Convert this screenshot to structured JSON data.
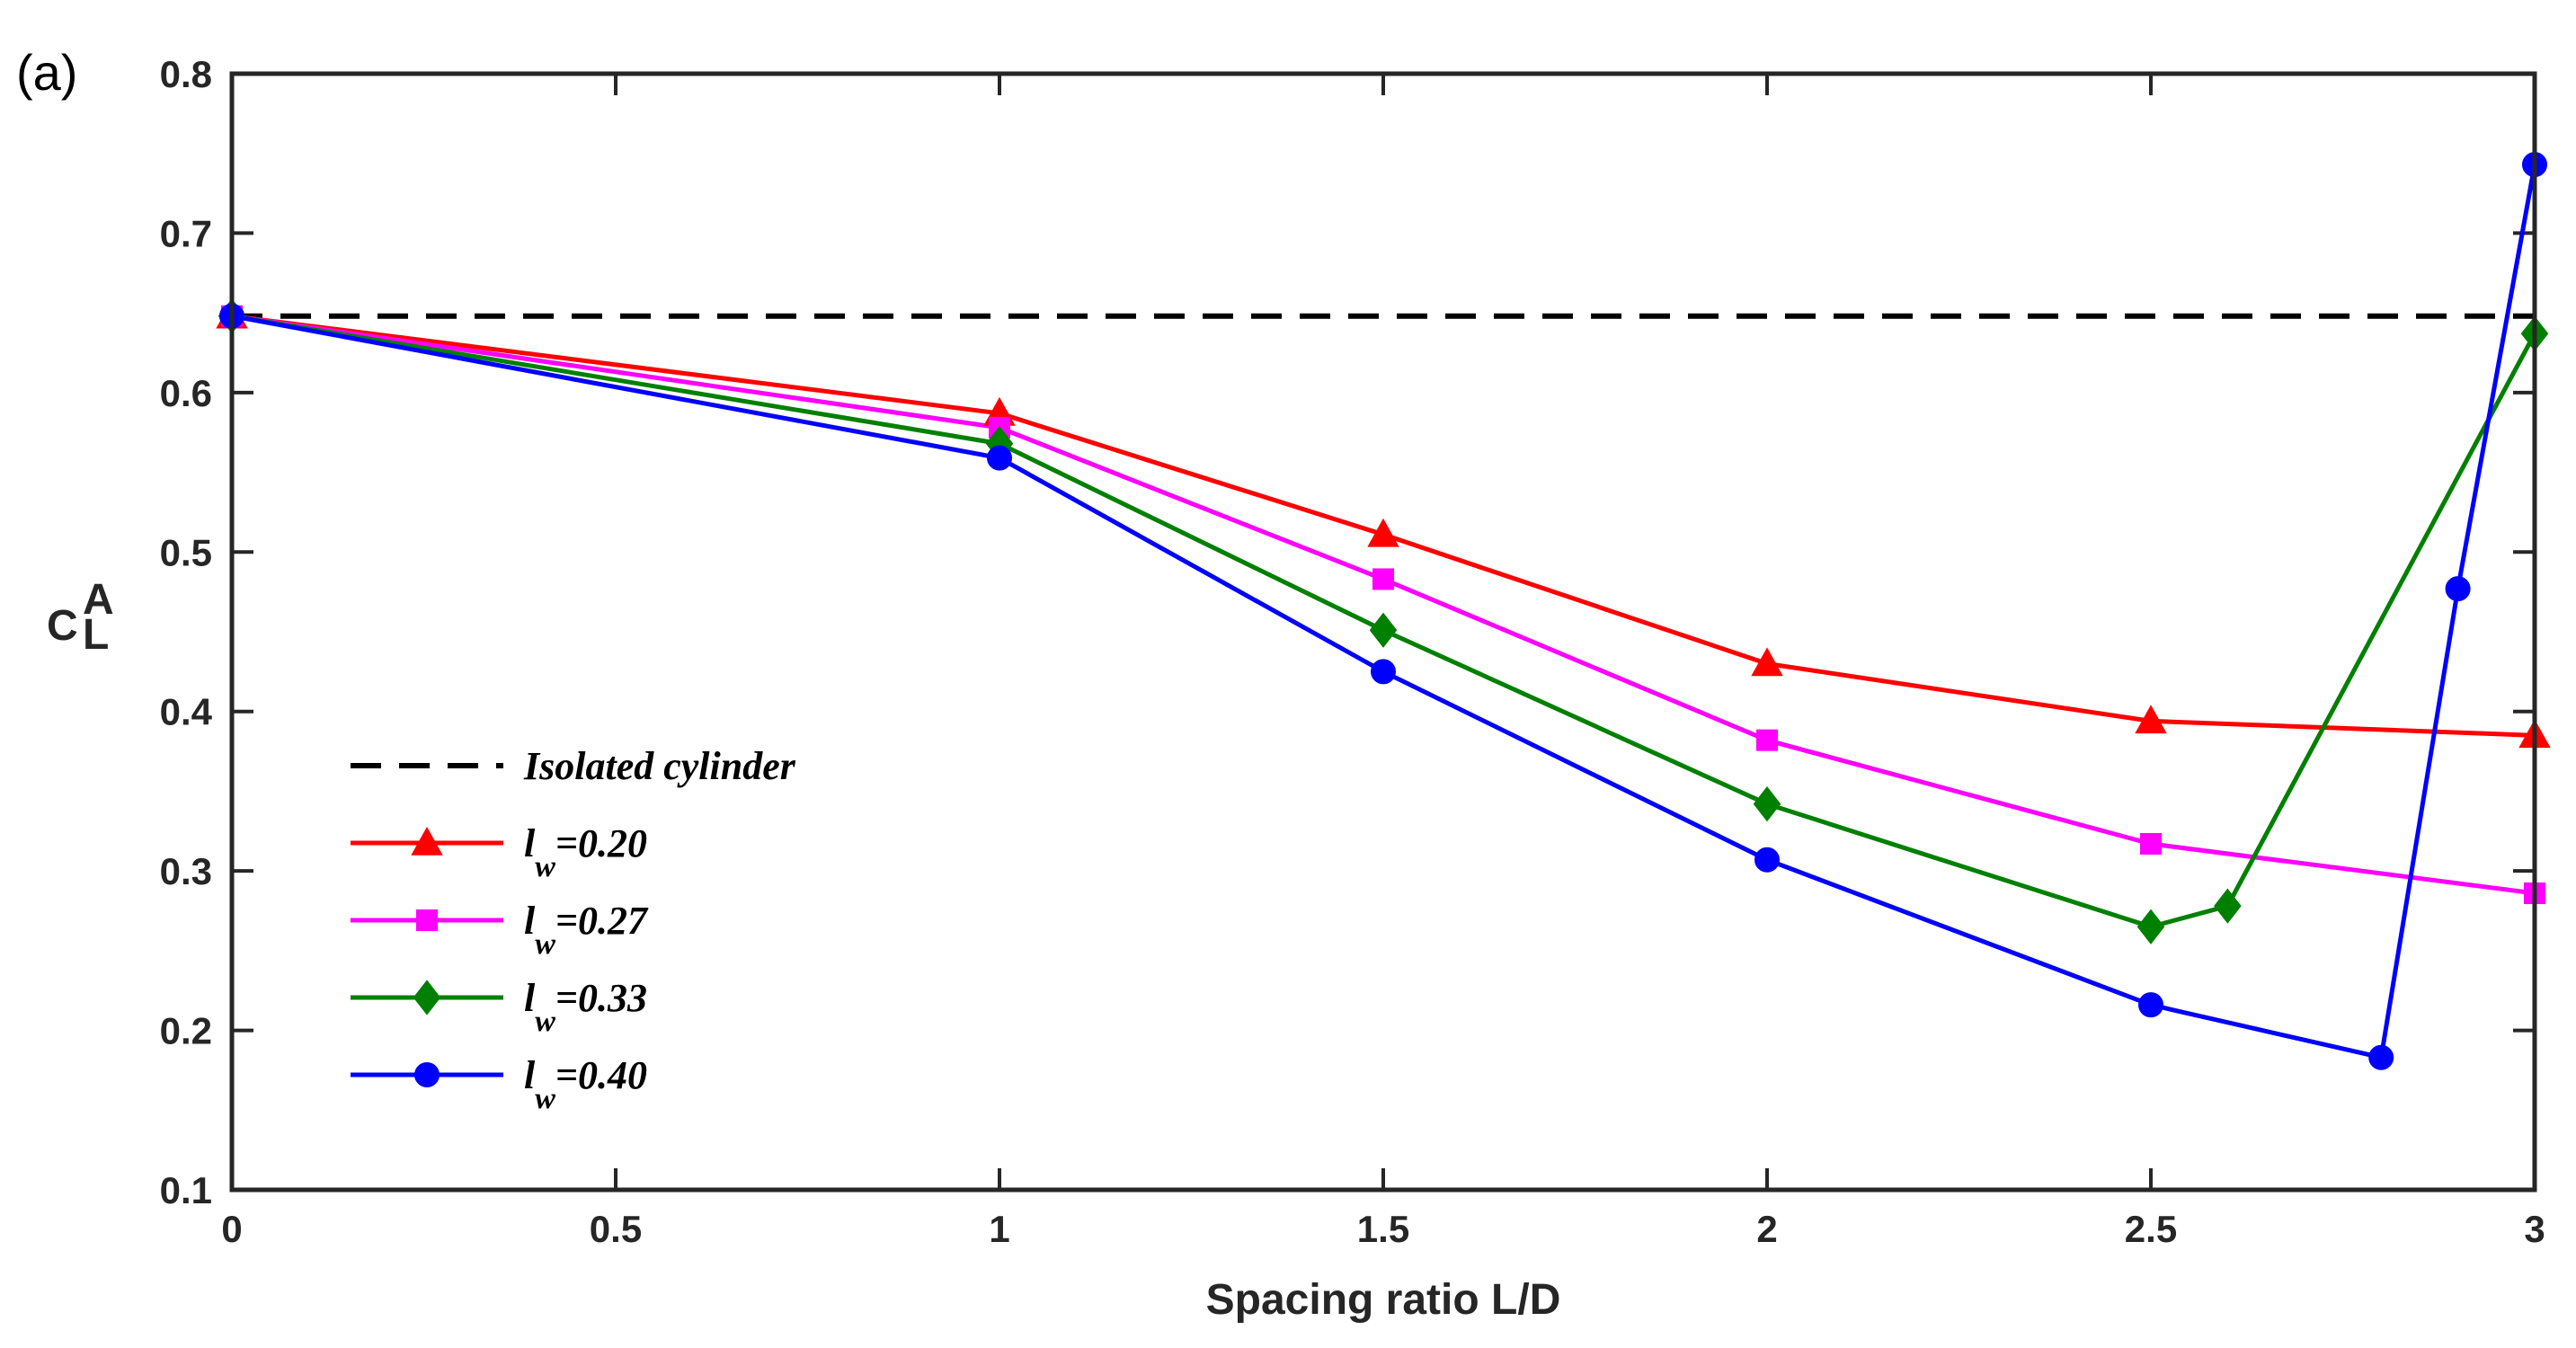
{
  "panel_label": "(a)",
  "chart_data": {
    "type": "line",
    "title": "",
    "xlabel": "Spacing ratio L/D",
    "ylabel": {
      "main": "C",
      "superscript": "A",
      "subscript": "L"
    },
    "xlim": [
      0,
      3
    ],
    "ylim": [
      0.1,
      0.8
    ],
    "xticks": [
      0,
      0.5,
      1,
      1.5,
      2,
      2.5,
      3
    ],
    "xtick_labels": [
      "0",
      "0.5",
      "1",
      "1.5",
      "2",
      "2.5",
      "3"
    ],
    "yticks": [
      0.1,
      0.2,
      0.3,
      0.4,
      0.5,
      0.6,
      0.7,
      0.8
    ],
    "ytick_labels": [
      "0.1",
      "0.2",
      "0.3",
      "0.4",
      "0.5",
      "0.6",
      "0.7",
      "0.8"
    ],
    "grid": false,
    "legend_position": "bottom-left",
    "reference_line": {
      "name": "Isolated cylinder",
      "y": 0.648,
      "color": "#000000",
      "style": "dashed"
    },
    "series": [
      {
        "name": "l_w=0.20",
        "label_main": "l",
        "label_sub": "w",
        "label_tail": "=0.20",
        "color": "#ff0000",
        "marker": "triangle",
        "x": [
          0,
          1,
          1.5,
          2,
          2.5,
          3
        ],
        "y": [
          0.648,
          0.587,
          0.511,
          0.43,
          0.394,
          0.385
        ]
      },
      {
        "name": "l_w=0.27",
        "label_main": "l",
        "label_sub": "w",
        "label_tail": "=0.27",
        "color": "#ff00ff",
        "marker": "square",
        "x": [
          0,
          1,
          1.5,
          2,
          2.5,
          3
        ],
        "y": [
          0.648,
          0.578,
          0.483,
          0.382,
          0.317,
          0.286
        ]
      },
      {
        "name": "l_w=0.33",
        "label_main": "l",
        "label_sub": "w",
        "label_tail": "=0.33",
        "color": "#008000",
        "marker": "diamond",
        "x": [
          0,
          1,
          1.5,
          2,
          2.5,
          2.6,
          3
        ],
        "y": [
          0.648,
          0.568,
          0.451,
          0.342,
          0.265,
          0.278,
          0.637
        ]
      },
      {
        "name": "l_w=0.40",
        "label_main": "l",
        "label_sub": "w",
        "label_tail": "=0.40",
        "color": "#0000ff",
        "marker": "circle",
        "x": [
          0,
          1,
          1.5,
          2,
          2.5,
          2.8,
          2.9,
          3
        ],
        "y": [
          0.648,
          0.559,
          0.425,
          0.307,
          0.216,
          0.183,
          0.477,
          0.743
        ]
      }
    ]
  }
}
